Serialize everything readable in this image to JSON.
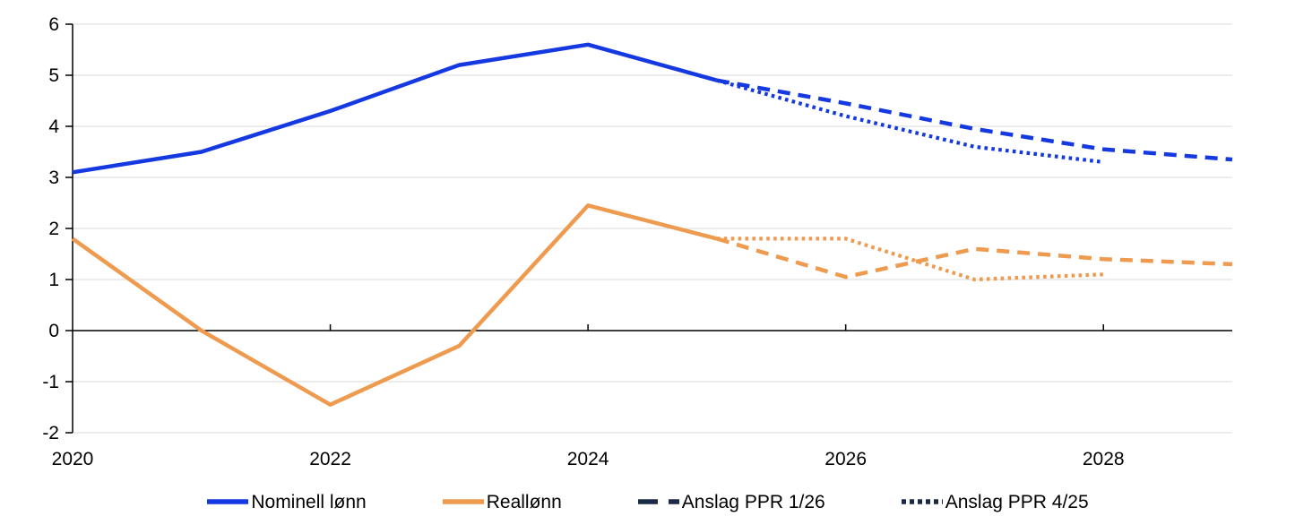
{
  "colors": {
    "blue": "#1539E1",
    "orange": "#EE9B50",
    "navy": "#182A44",
    "grid": "#D9D9D9",
    "axis": "#000000",
    "text": "#000000"
  },
  "legend": [
    {
      "label": "Nominell lønn",
      "swatch": "solid",
      "color_key": "blue"
    },
    {
      "label": "Reallønn",
      "swatch": "solid",
      "color_key": "orange"
    },
    {
      "label": "Anslag PPR 1/26",
      "swatch": "dashed",
      "color_key": "navy"
    },
    {
      "label": "Anslag PPR 4/25",
      "swatch": "dotted",
      "color_key": "navy"
    }
  ],
  "chart_data": {
    "type": "line",
    "x_range": [
      2020,
      2029
    ],
    "ylim": [
      -2,
      6
    ],
    "yticks": [
      6,
      5,
      4,
      3,
      2,
      1,
      0,
      -1,
      -2
    ],
    "xticks": [
      2020,
      2022,
      2024,
      2026,
      2028
    ],
    "grid": "horizontal",
    "zero_axis": true,
    "legend_position": "bottom",
    "series": [
      {
        "name": "Anslag PPR 4/25 (nominell lønn)",
        "color_key": "blue",
        "style": "dotted",
        "x": [
          2025,
          2026,
          2027,
          2028
        ],
        "y": [
          4.9,
          4.2,
          3.6,
          3.3
        ]
      },
      {
        "name": "Anslag PPR 4/25 (reallønn)",
        "color_key": "orange",
        "style": "dotted",
        "x": [
          2025,
          2026,
          2027,
          2028
        ],
        "y": [
          1.8,
          1.8,
          1.0,
          1.1
        ]
      },
      {
        "name": "Anslag PPR 1/26 (nominell lønn)",
        "color_key": "blue",
        "style": "dashed",
        "x": [
          2025,
          2026,
          2027,
          2028,
          2029
        ],
        "y": [
          4.9,
          4.45,
          3.95,
          3.55,
          3.35
        ]
      },
      {
        "name": "Anslag PPR 1/26 (reallønn)",
        "color_key": "orange",
        "style": "dashed",
        "x": [
          2025,
          2026,
          2027,
          2028,
          2029
        ],
        "y": [
          1.8,
          1.05,
          1.6,
          1.4,
          1.3
        ]
      },
      {
        "name": "Nominell lønn",
        "color_key": "blue",
        "style": "solid",
        "x": [
          2020,
          2021,
          2022,
          2023,
          2024,
          2025
        ],
        "y": [
          3.1,
          3.5,
          4.3,
          5.2,
          5.6,
          4.9
        ]
      },
      {
        "name": "Reallønn",
        "color_key": "orange",
        "style": "solid",
        "x": [
          2020,
          2021,
          2022,
          2023,
          2024,
          2025
        ],
        "y": [
          1.8,
          0.0,
          -1.45,
          -0.3,
          2.45,
          1.8
        ]
      }
    ]
  }
}
